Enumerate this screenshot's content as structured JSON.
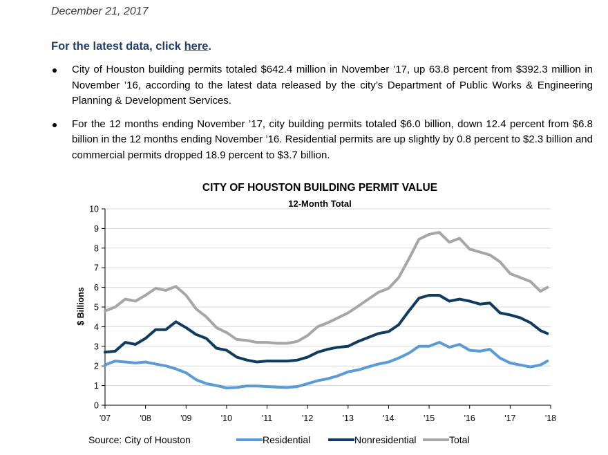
{
  "header": {
    "date": "December 21, 2017",
    "latest_prefix": "For the latest data, click ",
    "latest_link": "here",
    "latest_suffix": "."
  },
  "bullets": [
    "City of Houston building permits totaled $642.4 million in November ’17, up 63.8 percent from $392.3 million in November ’16, according to the latest data released by the city’s Department of Public Works & Engineering Planning & Development Services.",
    "For the 12 months ending November ’17, city building permits totaled $6.0 billion, down 12.4 percent from $6.8 billion in the 12 months ending November ’16. Residential permits are up slightly by 0.8 percent to $2.3 billion and commercial permits dropped 18.9 percent to $3.7 billion."
  ],
  "source": "Source: City of Houston",
  "chart_data": {
    "type": "line",
    "title": "CITY OF HOUSTON BUILDING PERMIT VALUE",
    "subtitle": "12-Month Total",
    "xlabel": "",
    "ylabel": "$ Billions",
    "ylim": [
      0,
      10
    ],
    "yticks": [
      0,
      1,
      2,
      3,
      4,
      5,
      6,
      7,
      8,
      9,
      10
    ],
    "xlim": [
      2007,
      2018
    ],
    "xticks": [
      {
        "value": 2007,
        "label": "'07"
      },
      {
        "value": 2008,
        "label": "'08"
      },
      {
        "value": 2009,
        "label": "'09"
      },
      {
        "value": 2010,
        "label": "'10"
      },
      {
        "value": 2011,
        "label": "'11"
      },
      {
        "value": 2012,
        "label": "'12"
      },
      {
        "value": 2013,
        "label": "'13"
      },
      {
        "value": 2014,
        "label": "'14"
      },
      {
        "value": 2015,
        "label": "'15"
      },
      {
        "value": 2016,
        "label": "'16"
      },
      {
        "value": 2017,
        "label": "'17"
      },
      {
        "value": 2018,
        "label": "'18"
      }
    ],
    "grid": true,
    "legend_position": "bottom",
    "x": [
      2007.0,
      2007.25,
      2007.5,
      2007.75,
      2008.0,
      2008.25,
      2008.5,
      2008.75,
      2009.0,
      2009.25,
      2009.5,
      2009.75,
      2010.0,
      2010.25,
      2010.5,
      2010.75,
      2011.0,
      2011.25,
      2011.5,
      2011.75,
      2012.0,
      2012.25,
      2012.5,
      2012.75,
      2013.0,
      2013.25,
      2013.5,
      2013.75,
      2014.0,
      2014.25,
      2014.5,
      2014.75,
      2015.0,
      2015.25,
      2015.5,
      2015.75,
      2016.0,
      2016.25,
      2016.5,
      2016.75,
      2017.0,
      2017.25,
      2017.5,
      2017.75,
      2017.92
    ],
    "series": [
      {
        "name": "Residential",
        "color": "#5b9bd5",
        "values": [
          2.05,
          2.25,
          2.2,
          2.15,
          2.2,
          2.1,
          2.0,
          1.85,
          1.65,
          1.3,
          1.1,
          1.0,
          0.88,
          0.9,
          0.98,
          0.98,
          0.95,
          0.92,
          0.9,
          0.95,
          1.1,
          1.25,
          1.35,
          1.5,
          1.7,
          1.8,
          1.95,
          2.1,
          2.2,
          2.4,
          2.65,
          3.0,
          3.0,
          3.2,
          2.95,
          3.1,
          2.8,
          2.75,
          2.85,
          2.4,
          2.15,
          2.05,
          1.95,
          2.05,
          2.25
        ]
      },
      {
        "name": "Nonresidential",
        "color": "#0f3b5f",
        "values": [
          2.7,
          2.75,
          3.2,
          3.1,
          3.4,
          3.85,
          3.85,
          4.25,
          3.95,
          3.6,
          3.4,
          2.9,
          2.8,
          2.45,
          2.3,
          2.2,
          2.25,
          2.25,
          2.25,
          2.3,
          2.45,
          2.7,
          2.85,
          2.95,
          3.0,
          3.25,
          3.45,
          3.65,
          3.75,
          4.1,
          4.8,
          5.45,
          5.6,
          5.6,
          5.3,
          5.4,
          5.3,
          5.15,
          5.2,
          4.7,
          4.6,
          4.45,
          4.2,
          3.8,
          3.65
        ]
      },
      {
        "name": "Total",
        "color": "#a6a6a6",
        "values": [
          4.8,
          5.0,
          5.4,
          5.3,
          5.6,
          5.95,
          5.85,
          6.05,
          5.6,
          4.9,
          4.5,
          3.95,
          3.7,
          3.35,
          3.3,
          3.2,
          3.2,
          3.15,
          3.15,
          3.25,
          3.55,
          4.0,
          4.2,
          4.45,
          4.7,
          5.05,
          5.4,
          5.75,
          5.95,
          6.5,
          7.45,
          8.45,
          8.7,
          8.8,
          8.3,
          8.5,
          7.95,
          7.8,
          7.65,
          7.3,
          6.7,
          6.5,
          6.3,
          5.8,
          6.0
        ]
      }
    ]
  }
}
